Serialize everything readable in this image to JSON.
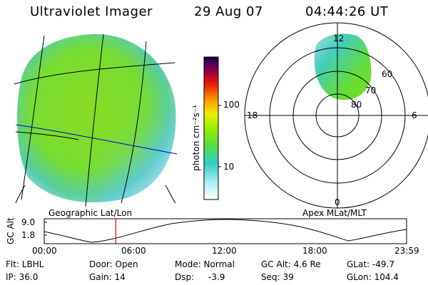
{
  "header": {
    "title": "Ultraviolet Imager",
    "date": "29 Aug 07",
    "time": "04:44:26 UT"
  },
  "colorbar": {
    "label": "photon cm⁻²s⁻¹",
    "ticks": [
      "100",
      "10"
    ]
  },
  "left_panel": {
    "caption": "Geographic Lat/Lon"
  },
  "polar_panel": {
    "caption": "Apex MLat/MLT",
    "mlt_labels": {
      "top": "12",
      "left": "18",
      "right": "6",
      "bottom": "0"
    },
    "lat_labels": [
      "60",
      "70",
      "80"
    ]
  },
  "timeline": {
    "ylabel": "GC Alt",
    "yticks": [
      "9.0",
      "1.8"
    ],
    "xticks": [
      "00:00",
      "06:00",
      "12:00",
      "18:00",
      "23:59"
    ],
    "marker_time_hours": 4.74
  },
  "info": {
    "flt": "Flt: LBHL",
    "ip": "IP: 36.0",
    "door": "Door: Open",
    "gain": "Gain: 14",
    "mode": "Mode: Normal",
    "dsp_label": "Dsp:",
    "dsp_value": "-3.9",
    "gcalt": "GC Alt: 4.6 Re",
    "seq": "Seq: 39",
    "glat": "GLat: -49.7",
    "glon": "GLon: 104.4"
  },
  "colors": {
    "aurora_green": "#77dd22",
    "aurora_cyan": "#44ccdd",
    "aurora_pale": "#cceeee",
    "marker": "#e00000",
    "blue_line": "#0000cc"
  }
}
